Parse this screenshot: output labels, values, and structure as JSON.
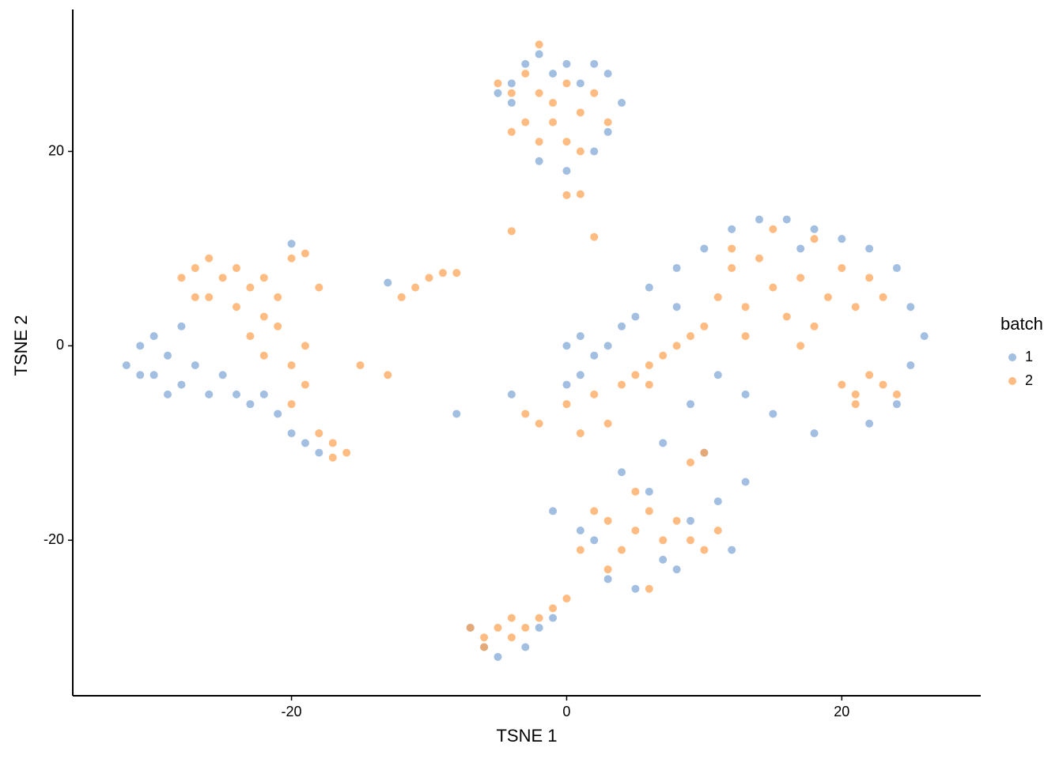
{
  "chart_data": {
    "type": "scatter",
    "xlabel": "TSNE 1",
    "ylabel": "TSNE 2",
    "legend_title": "batch",
    "xlim": [
      -35.9,
      30.1
    ],
    "ylim": [
      -36,
      34.6
    ],
    "xticks": [
      -20,
      0,
      20
    ],
    "yticks": [
      -20,
      0,
      20
    ],
    "grid": false,
    "legend_position": "right",
    "series": [
      {
        "name": "1",
        "color": "#7ba2d4",
        "x": [
          -32,
          -31,
          -30,
          -30,
          -29,
          -28,
          -28,
          -27,
          -26,
          -25,
          -24,
          -23,
          -22,
          -21,
          -20,
          -19,
          -18,
          -20,
          -29,
          -31,
          -4,
          -3,
          -2,
          -1,
          0,
          1,
          2,
          3,
          4,
          3,
          -4,
          -5,
          2,
          -2,
          0,
          0,
          1,
          2,
          3,
          4,
          1,
          0,
          5,
          6,
          8,
          10,
          12,
          14,
          16,
          18,
          20,
          22,
          24,
          25,
          26,
          25,
          24,
          22,
          18,
          15,
          13,
          11,
          9,
          7,
          10,
          13,
          8,
          17,
          -4,
          2,
          3,
          5,
          7,
          9,
          11,
          12,
          8,
          6,
          4,
          -1,
          1,
          -7,
          -6,
          -5,
          -3,
          -2,
          -1,
          -8,
          -13
        ],
        "y": [
          -2,
          0,
          -3,
          1,
          -1,
          -4,
          2,
          -2,
          -5,
          -3,
          -5,
          -6,
          -5,
          -7,
          -9,
          -10,
          -11,
          10.5,
          -5,
          -3,
          27,
          29,
          30,
          28,
          29,
          27,
          29,
          28,
          25,
          22,
          25,
          26,
          20,
          19,
          18,
          0,
          1,
          -1,
          0,
          2,
          -3,
          -4,
          3,
          6,
          8,
          10,
          12,
          13,
          13,
          12,
          11,
          10,
          8,
          4,
          1,
          -2,
          -6,
          -8,
          -9,
          -7,
          -5,
          -3,
          -6,
          -10,
          -11,
          -14,
          4,
          10,
          -5,
          -20,
          -24,
          -25,
          -22,
          -18,
          -16,
          -21,
          -23,
          -15,
          -13,
          -17,
          -19,
          -29,
          -31,
          -32,
          -31,
          -29,
          -28,
          -7,
          6.5
        ]
      },
      {
        "name": "2",
        "color": "#ffa04d",
        "x": [
          -28,
          -27,
          -26,
          -25,
          -24,
          -23,
          -22,
          -26,
          -24,
          -22,
          -23,
          -21,
          -22,
          -20,
          -19,
          -20,
          -19,
          -27,
          -21,
          -18,
          -20,
          -19,
          -17,
          -16,
          -17,
          -18,
          -12,
          -11,
          -10,
          -9,
          -8,
          -13,
          -15,
          -4,
          0,
          1,
          2,
          -5,
          -4,
          -3,
          -2,
          -1,
          0,
          1,
          2,
          3,
          -3,
          -2,
          0,
          1,
          -4,
          -2,
          -1,
          10,
          11,
          12,
          13,
          14,
          15,
          16,
          17,
          18,
          19,
          20,
          21,
          22,
          23,
          15,
          13,
          18,
          12,
          17,
          20,
          21,
          22,
          23,
          24,
          21,
          0,
          2,
          4,
          5,
          6,
          7,
          8,
          9,
          3,
          1,
          -2,
          -3,
          6,
          10,
          9,
          2,
          3,
          4,
          5,
          6,
          7,
          8,
          9,
          10,
          3,
          5,
          6,
          11,
          1,
          -7,
          -6,
          -5,
          -4,
          -3,
          -2,
          -1,
          0,
          -6,
          -4
        ],
        "y": [
          7,
          8,
          9,
          7,
          8,
          6,
          7,
          5,
          4,
          3,
          1,
          2,
          -1,
          -2,
          -4,
          -6,
          0,
          5,
          5,
          6,
          9,
          9.5,
          -10,
          -11,
          -11.5,
          -9,
          5,
          6,
          7,
          7.5,
          7.5,
          -3,
          -2,
          11.8,
          15.5,
          15.6,
          11.2,
          27,
          26,
          28,
          26,
          25,
          27,
          24,
          26,
          23,
          23,
          21,
          21,
          20,
          22,
          31,
          23,
          2,
          5,
          8,
          4,
          9,
          6,
          3,
          7,
          11,
          5,
          8,
          4,
          7,
          5,
          12,
          1,
          2,
          10,
          0,
          -4,
          -5,
          -3,
          -4,
          -5,
          -6,
          -6,
          -5,
          -4,
          -3,
          -2,
          -1,
          0,
          1,
          -8,
          -9,
          -8,
          -7,
          -4,
          -11,
          -12,
          -17,
          -18,
          -21,
          -19,
          -17,
          -20,
          -18,
          -20,
          -21,
          -23,
          -15,
          -25,
          -19,
          -21,
          -29,
          -30,
          -29,
          -28,
          -29,
          -28,
          -27,
          -26,
          -31,
          -30
        ]
      }
    ]
  }
}
